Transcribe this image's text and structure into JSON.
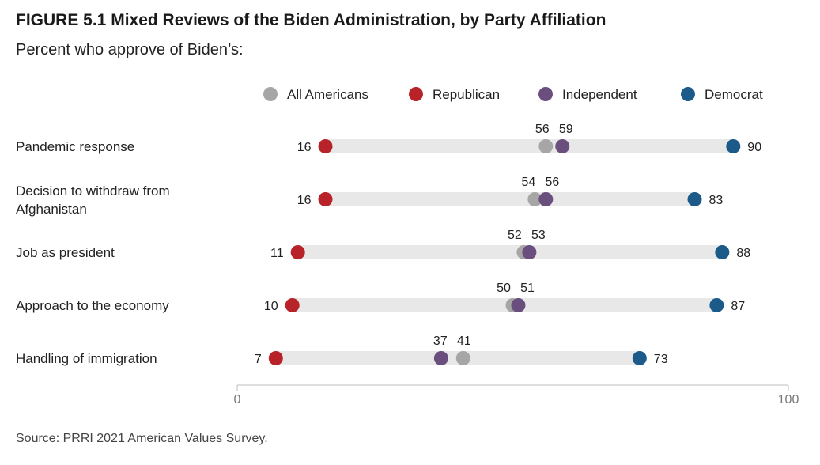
{
  "title": "FIGURE 5.1 Mixed Reviews of the Biden Administration, by Party Affiliation",
  "subtitle": "Percent who approve of Biden’s:",
  "source": "Source: PRRI 2021 American Values Survey.",
  "colors": {
    "All Americans": "#a6a6a6",
    "Republican": "#b8232a",
    "Independent": "#6a4e7e",
    "Democrat": "#1c5a8a",
    "track": "#e8e8e8"
  },
  "chart_data": {
    "type": "scatter",
    "xlim": [
      0,
      100
    ],
    "x_ticks": [
      "0",
      "100"
    ],
    "legend_position": "top",
    "categories": [
      [
        "Pandemic response"
      ],
      [
        "Decision to withdraw from",
        "Afghanistan"
      ],
      [
        "Job as president"
      ],
      [
        "Approach to the economy"
      ],
      [
        "Handling of immigration"
      ]
    ],
    "series": [
      {
        "name": "All Americans",
        "values": [
          56,
          54,
          52,
          50,
          41
        ]
      },
      {
        "name": "Republican",
        "values": [
          16,
          16,
          11,
          10,
          7
        ]
      },
      {
        "name": "Independent",
        "values": [
          59,
          56,
          53,
          51,
          37
        ]
      },
      {
        "name": "Democrat",
        "values": [
          90,
          83,
          88,
          87,
          73
        ]
      }
    ]
  }
}
